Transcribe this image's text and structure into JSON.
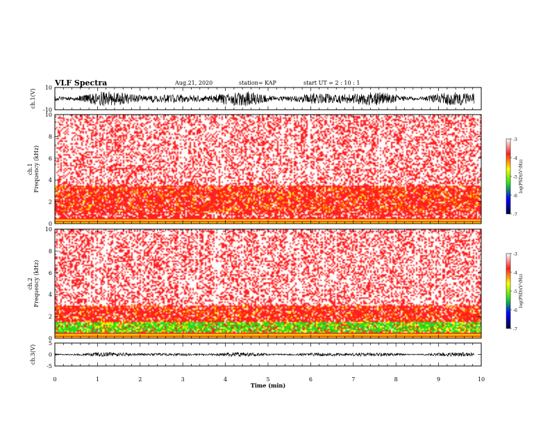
{
  "header": {
    "title": "VLF Spectra",
    "date": "Aug.21, 2020",
    "station": "station= KAP",
    "start_ut": "start  UT =   2 : 10 : 1"
  },
  "colors": {
    "white": "#ffffff",
    "red": "#ff2020",
    "orange": "#ff8c00",
    "yellow": "#ffff00",
    "green": "#22dd22",
    "blue": "#0000ff",
    "navy": "#000033",
    "axis": "#000000"
  },
  "chart_data": [
    {
      "type": "line",
      "name": "ch1-waveform",
      "ylabel": "ch.1(V)",
      "ylim": [
        -10,
        10
      ],
      "ytick_labels": [
        "10",
        "-10"
      ],
      "xlim": [
        0,
        10
      ],
      "duration_min": 9.83,
      "envelope_v": 7
    },
    {
      "type": "heatmap",
      "name": "ch1-spectrogram",
      "ylabel": "ch.1\nFrequency (kHz)",
      "ylim_khz": [
        0,
        10
      ],
      "ytick_labels": [
        "0",
        "2",
        "4",
        "6",
        "8",
        "10"
      ],
      "colorbar": {
        "label": "log(PSD)(V²/Hz)",
        "range": [
          -7,
          -3
        ],
        "ticks": [
          "-3",
          "-4",
          "-5",
          "-6",
          "-7"
        ]
      },
      "strong_band_khz": [
        1,
        3.5
      ],
      "green_band_khz": [
        0,
        0
      ]
    },
    {
      "type": "heatmap",
      "name": "ch2-spectrogram",
      "ylabel": "ch.2\nFrequency (kHz)",
      "ylim_khz": [
        0,
        10
      ],
      "ytick_labels": [
        "0",
        "2",
        "4",
        "6",
        "8",
        "10"
      ],
      "colorbar": {
        "label": "log(PSD)(V²/Hz)",
        "range": [
          -7,
          -3
        ],
        "ticks": [
          "-3",
          "-4",
          "-5",
          "-6",
          "-7"
        ]
      },
      "strong_band_khz": [
        0.5,
        3
      ],
      "green_band_khz": [
        0.5,
        1.5
      ]
    },
    {
      "type": "line",
      "name": "ch3-waveform",
      "ylabel": "ch.3(V)",
      "ylim": [
        -5,
        5
      ],
      "ytick_labels": [
        "5",
        "0",
        "-5"
      ],
      "xlim": [
        0,
        10
      ],
      "duration_min": 9.83,
      "envelope_v": 1
    }
  ],
  "xaxis": {
    "label": "Time (min)",
    "range": [
      0,
      10
    ],
    "ticks": [
      "0",
      "1",
      "2",
      "3",
      "4",
      "5",
      "6",
      "7",
      "8",
      "9",
      "10"
    ]
  }
}
